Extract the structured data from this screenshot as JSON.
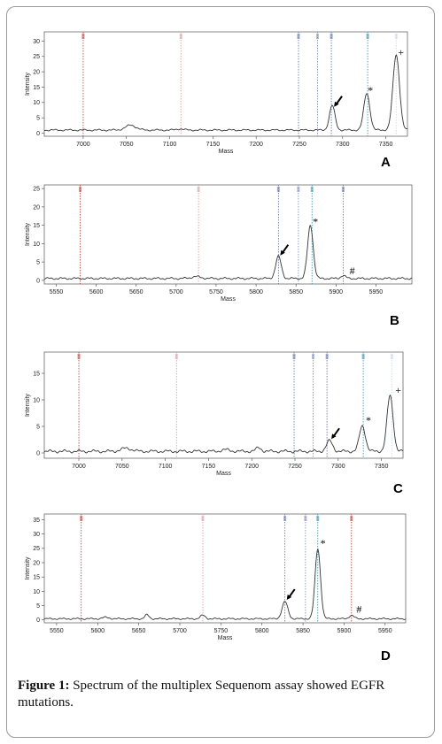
{
  "figure": {
    "caption_label": "Figure 1:",
    "caption_text": " Spectrum of the multiplex Sequenom assay showed EGFR mutations."
  },
  "chart_data": [
    {
      "type": "line",
      "panel_label": "A",
      "xlabel": "Mass",
      "ylabel": "Intensity",
      "xlim": [
        6955,
        7375
      ],
      "ylim": [
        -1,
        33
      ],
      "xticks": [
        7000,
        7050,
        7100,
        7150,
        7200,
        7250,
        7300,
        7350
      ],
      "yticks": [
        0,
        5,
        10,
        15,
        20,
        25,
        30
      ],
      "baseline": 1,
      "peaks": [
        {
          "x": 7055,
          "h": 1.6,
          "w": 6
        },
        {
          "x": 7112,
          "h": 0.4,
          "w": 4
        },
        {
          "x": 7288,
          "h": 8,
          "w": 3.2
        },
        {
          "x": 7328,
          "h": 12,
          "w": 3.5
        },
        {
          "x": 7362,
          "h": 24.5,
          "w": 3.8
        }
      ],
      "reference_lines": [
        {
          "x": 7000,
          "color": "#c0392b"
        },
        {
          "x": 7113,
          "color": "#d59a9a"
        },
        {
          "x": 7249,
          "color": "#5b6ea8"
        },
        {
          "x": 7271,
          "color": "#7a88b8"
        },
        {
          "x": 7287,
          "color": "#5b6ea8"
        },
        {
          "x": 7329,
          "color": "#2e8fa8"
        },
        {
          "x": 7362,
          "color": "#cbd6e8"
        }
      ],
      "annotations": [
        {
          "type": "arrow",
          "x": 7288,
          "y": 8
        },
        {
          "type": "text",
          "text": "*",
          "x": 7329,
          "y": 12.3
        },
        {
          "type": "text",
          "text": "+",
          "x": 7364,
          "y": 24.6
        }
      ]
    },
    {
      "type": "line",
      "panel_label": "B",
      "xlabel": "Mass",
      "ylabel": "Intensity",
      "xlim": [
        5535,
        5995
      ],
      "ylim": [
        -1,
        26
      ],
      "xticks": [
        5550,
        5600,
        5650,
        5700,
        5750,
        5800,
        5850,
        5900,
        5950
      ],
      "yticks": [
        0,
        5,
        10,
        15,
        20,
        25
      ],
      "baseline": 0.5,
      "peaks": [
        {
          "x": 5725,
          "h": 0.5,
          "w": 6
        },
        {
          "x": 5828,
          "h": 6,
          "w": 3.5
        },
        {
          "x": 5868,
          "h": 14.5,
          "w": 3.5
        },
        {
          "x": 5909,
          "h": 0.8,
          "w": 3
        }
      ],
      "reference_lines": [
        {
          "x": 5580,
          "color": "#c0392b"
        },
        {
          "x": 5728,
          "color": "#d59a9a"
        },
        {
          "x": 5828,
          "color": "#5b6ea8"
        },
        {
          "x": 5853,
          "color": "#7a88b8"
        },
        {
          "x": 5870,
          "color": "#2e8fa8"
        },
        {
          "x": 5909,
          "color": "#5b6ea8"
        }
      ],
      "annotations": [
        {
          "type": "arrow",
          "x": 5828,
          "y": 6.3
        },
        {
          "type": "text",
          "text": "*",
          "x": 5871,
          "y": 14.6
        },
        {
          "type": "text",
          "text": "#",
          "x": 5917,
          "y": 1.2
        }
      ]
    },
    {
      "type": "line",
      "panel_label": "C",
      "xlabel": "Mass",
      "ylabel": "Intensity",
      "xlim": [
        6960,
        7375
      ],
      "ylim": [
        -1,
        19
      ],
      "xticks": [
        7000,
        7050,
        7100,
        7150,
        7200,
        7250,
        7300,
        7350
      ],
      "yticks": [
        0,
        5,
        10,
        15
      ],
      "baseline": 0.3,
      "peaks": [
        {
          "x": 7055,
          "h": 0.6,
          "w": 6
        },
        {
          "x": 7170,
          "h": 0.3,
          "w": 5
        },
        {
          "x": 7208,
          "h": 0.7,
          "w": 3
        },
        {
          "x": 7290,
          "h": 2,
          "w": 3.5
        },
        {
          "x": 7328,
          "h": 4.8,
          "w": 3.5
        },
        {
          "x": 7360,
          "h": 10.5,
          "w": 3.5
        }
      ],
      "reference_lines": [
        {
          "x": 7000,
          "color": "#c0392b"
        },
        {
          "x": 7113,
          "color": "#d59a9a"
        },
        {
          "x": 7249,
          "color": "#5b6ea8"
        },
        {
          "x": 7271,
          "color": "#7a88b8"
        },
        {
          "x": 7287,
          "color": "#5b6ea8"
        },
        {
          "x": 7329,
          "color": "#2e8fa8"
        },
        {
          "x": 7362,
          "color": "#cbd6e8"
        }
      ],
      "annotations": [
        {
          "type": "arrow",
          "x": 7290,
          "y": 2.3
        },
        {
          "type": "text",
          "text": "*",
          "x": 7332,
          "y": 5.2
        },
        {
          "type": "text",
          "text": "+",
          "x": 7366,
          "y": 10.8
        }
      ]
    },
    {
      "type": "line",
      "panel_label": "D",
      "xlabel": "Mass",
      "ylabel": "Intensity",
      "xlim": [
        5535,
        5975
      ],
      "ylim": [
        -1,
        37
      ],
      "xticks": [
        5550,
        5600,
        5650,
        5700,
        5750,
        5800,
        5850,
        5900,
        5950
      ],
      "yticks": [
        0,
        5,
        10,
        15,
        20,
        25,
        30,
        35
      ],
      "baseline": 0.4,
      "peaks": [
        {
          "x": 5610,
          "h": 0.5,
          "w": 4
        },
        {
          "x": 5660,
          "h": 1.4,
          "w": 2.5
        },
        {
          "x": 5728,
          "h": 1.2,
          "w": 3
        },
        {
          "x": 5828,
          "h": 6,
          "w": 3.5
        },
        {
          "x": 5868,
          "h": 24.5,
          "w": 3.3
        },
        {
          "x": 5909,
          "h": 1.2,
          "w": 3
        }
      ],
      "reference_lines": [
        {
          "x": 5580,
          "color": "#c0392b"
        },
        {
          "x": 5728,
          "color": "#d59a9a"
        },
        {
          "x": 5828,
          "color": "#5b6ea8"
        },
        {
          "x": 5853,
          "color": "#7a88b8"
        },
        {
          "x": 5868,
          "color": "#2e8fa8"
        },
        {
          "x": 5909,
          "color": "#c0392b"
        }
      ],
      "annotations": [
        {
          "type": "arrow",
          "x": 5828,
          "y": 6.4
        },
        {
          "type": "text",
          "text": "*",
          "x": 5871,
          "y": 25
        },
        {
          "type": "text",
          "text": "#",
          "x": 5915,
          "y": 2
        }
      ]
    }
  ]
}
